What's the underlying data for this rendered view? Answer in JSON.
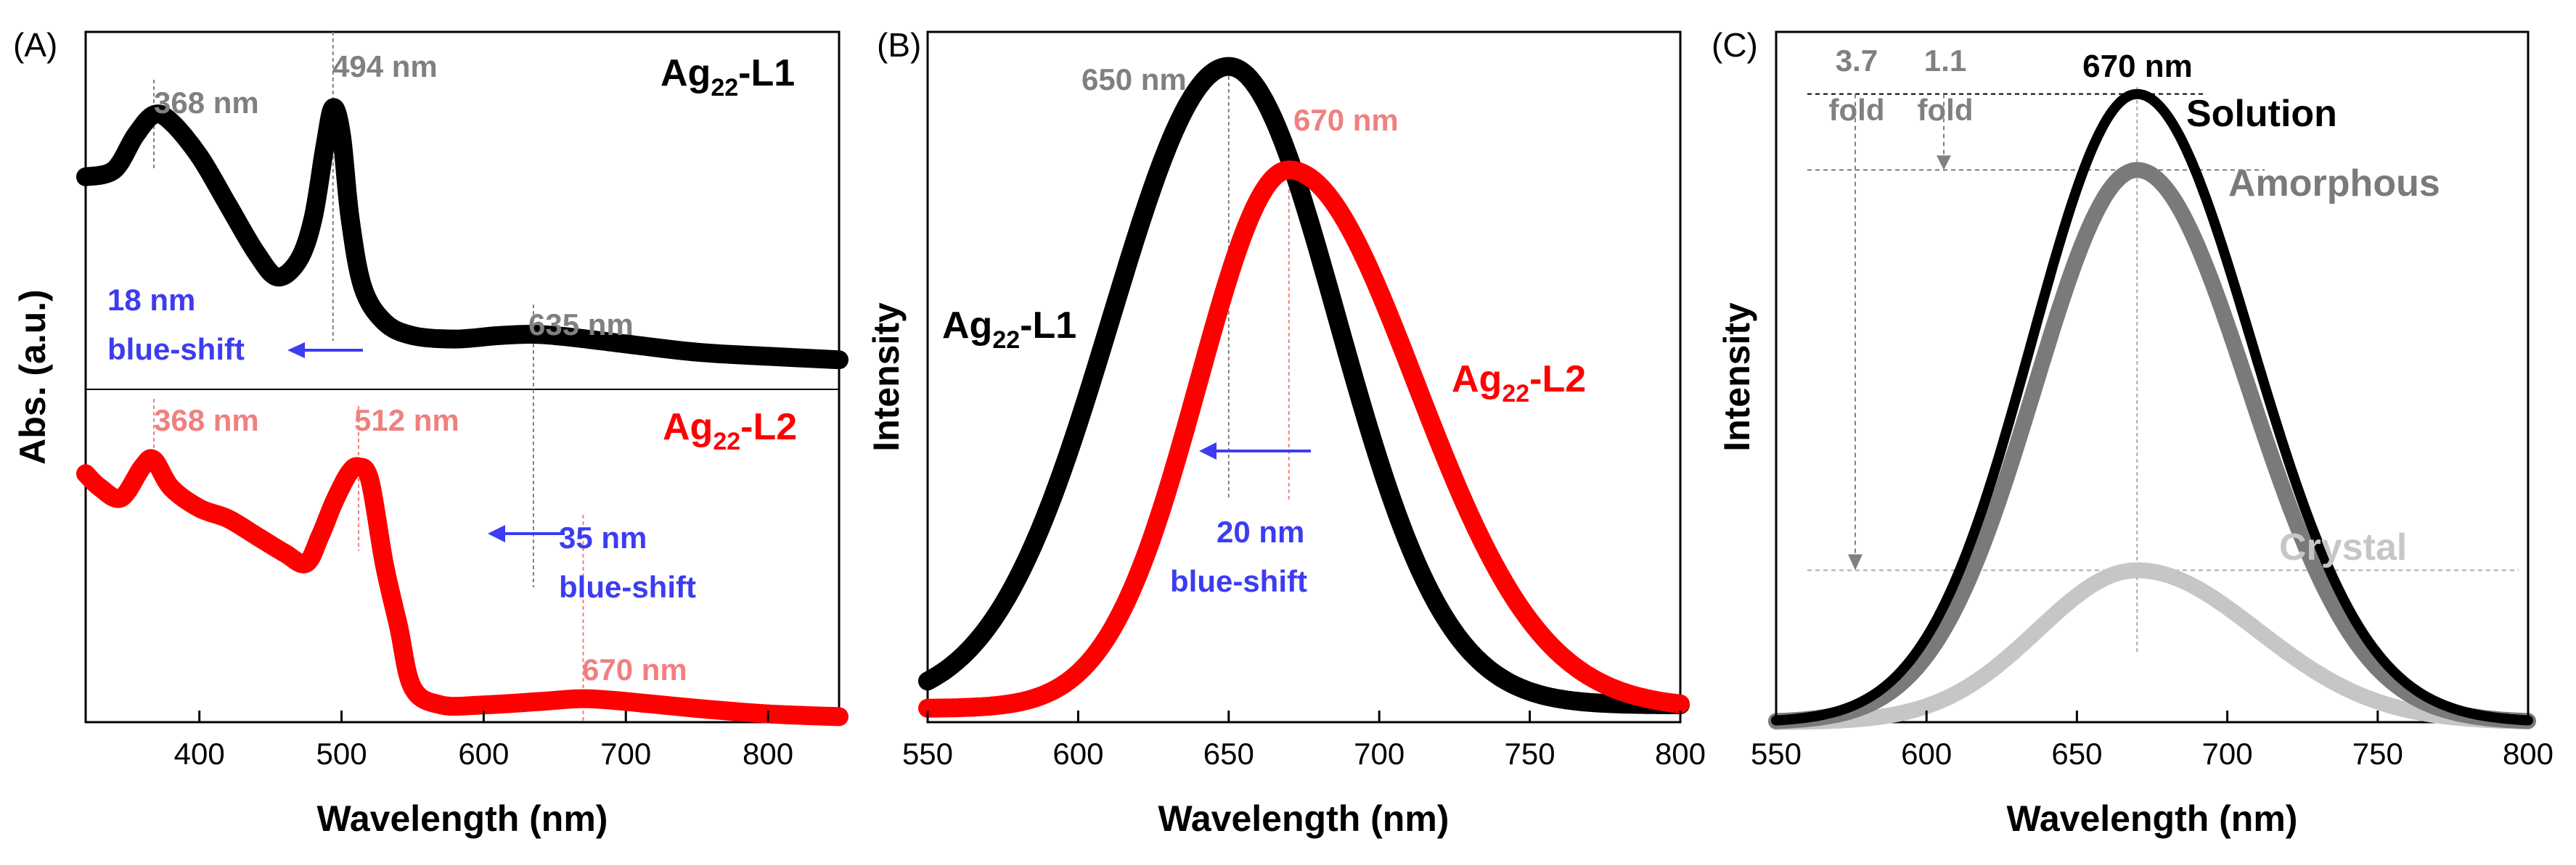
{
  "figure": {
    "colors": {
      "black": "#000000",
      "red": "#ff0000",
      "grey": "#808080",
      "pink": "#f08080",
      "blue": "#3c3cf0",
      "darkgrey": "#7a7a7a",
      "lightgrey": "#c6c6c6"
    }
  },
  "chart_data": [
    {
      "panel": "(A)",
      "type": "line",
      "xlabel": "Wavelength (nm)",
      "ylabel": "Abs. (a.u.)",
      "xlim": [
        320,
        850
      ],
      "ylim": [
        0,
        1
      ],
      "xticks": [
        400,
        500,
        600,
        700,
        800
      ],
      "xtick_labels": [
        "400",
        "500",
        "600",
        "700",
        "800"
      ],
      "series": [
        {
          "name": "Ag22-L1",
          "label_main": "Ag",
          "label_sub": "22",
          "label_suffix": "-L1",
          "color": "#000000",
          "x": [
            320,
            340,
            355,
            368,
            380,
            400,
            420,
            440,
            455,
            470,
            480,
            488,
            494,
            500,
            506,
            515,
            530,
            550,
            580,
            610,
            635,
            660,
            700,
            750,
            800,
            850
          ],
          "y": [
            0.79,
            0.8,
            0.85,
            0.88,
            0.87,
            0.82,
            0.75,
            0.68,
            0.645,
            0.67,
            0.73,
            0.83,
            0.89,
            0.85,
            0.73,
            0.63,
            0.58,
            0.56,
            0.555,
            0.56,
            0.562,
            0.558,
            0.548,
            0.536,
            0.53,
            0.525
          ]
        },
        {
          "name": "Ag22-L2",
          "label_main": "Ag",
          "label_sub": "22",
          "label_suffix": "-L2",
          "color": "#ff0000",
          "x": [
            320,
            330,
            345,
            360,
            368,
            380,
            400,
            420,
            440,
            460,
            475,
            485,
            495,
            505,
            512,
            520,
            530,
            540,
            550,
            570,
            600,
            640,
            670,
            700,
            750,
            800,
            850
          ],
          "y": [
            0.36,
            0.34,
            0.325,
            0.37,
            0.38,
            0.34,
            0.31,
            0.295,
            0.27,
            0.245,
            0.23,
            0.27,
            0.32,
            0.36,
            0.37,
            0.35,
            0.23,
            0.14,
            0.05,
            0.025,
            0.025,
            0.03,
            0.034,
            0.03,
            0.02,
            0.012,
            0.008
          ]
        }
      ],
      "annotations": {
        "peak_368_l1": "368 nm",
        "peak_494": "494 nm",
        "peak_635": "635 nm",
        "peak_368_l2": "368 nm",
        "peak_512": "512 nm",
        "peak_670": "670 nm",
        "shift_18_value": "18 nm",
        "shift_18_text": "blue-shift",
        "shift_35_value": "35 nm",
        "shift_35_text": "blue-shift"
      }
    },
    {
      "panel": "(B)",
      "type": "line",
      "xlabel": "Wavelength (nm)",
      "ylabel": "Intensity",
      "xlim": [
        550,
        800
      ],
      "ylim": [
        0,
        1
      ],
      "xticks": [
        550,
        600,
        650,
        700,
        750,
        800
      ],
      "xtick_labels": [
        "550",
        "600",
        "650",
        "700",
        "750",
        "800"
      ],
      "series": [
        {
          "name": "Ag22-L1",
          "label_main": "Ag",
          "label_sub": "22",
          "label_suffix": "-L1",
          "color": "#000000",
          "peak_x": 650,
          "peak_y": 0.95,
          "sigma_left": 39,
          "sigma_right": 36,
          "baseline": 0.025
        },
        {
          "name": "Ag22-L2",
          "label_main": "Ag",
          "label_sub": "22",
          "label_suffix": "-L2",
          "color": "#ff0000",
          "peak_x": 670,
          "peak_y": 0.8,
          "sigma_left": 30,
          "sigma_right": 42,
          "baseline": 0.02
        }
      ],
      "annotations": {
        "peak_650": "650 nm",
        "peak_670": "670 nm",
        "shift_value": "20 nm",
        "shift_text": "blue-shift"
      }
    },
    {
      "panel": "(C)",
      "type": "line",
      "xlabel": "Wavelength (nm)",
      "ylabel": "Intensity",
      "xlim": [
        550,
        800
      ],
      "ylim": [
        0,
        1
      ],
      "xticks": [
        550,
        600,
        650,
        700,
        750,
        800
      ],
      "xtick_labels": [
        "550",
        "600",
        "650",
        "700",
        "750",
        "800"
      ],
      "series": [
        {
          "name": "Solution",
          "color": "#000000",
          "peak_x": 670,
          "peak_y": 0.91,
          "sigma_left": 35,
          "sigma_right": 38,
          "baseline": 0.0
        },
        {
          "name": "Amorphous",
          "color": "#7a7a7a",
          "peak_x": 670,
          "peak_y": 0.8,
          "sigma_left": 34,
          "sigma_right": 37,
          "baseline": 0.0
        },
        {
          "name": "Crystal",
          "color": "#c6c6c6",
          "peak_x": 670,
          "peak_y": 0.22,
          "sigma_left": 33,
          "sigma_right": 40,
          "baseline": 0.0
        }
      ],
      "annotations": {
        "fold_37_value": "3.7",
        "fold_37_text": "fold",
        "fold_11_value": "1.1",
        "fold_11_text": "fold",
        "peak_670": "670 nm"
      }
    }
  ]
}
